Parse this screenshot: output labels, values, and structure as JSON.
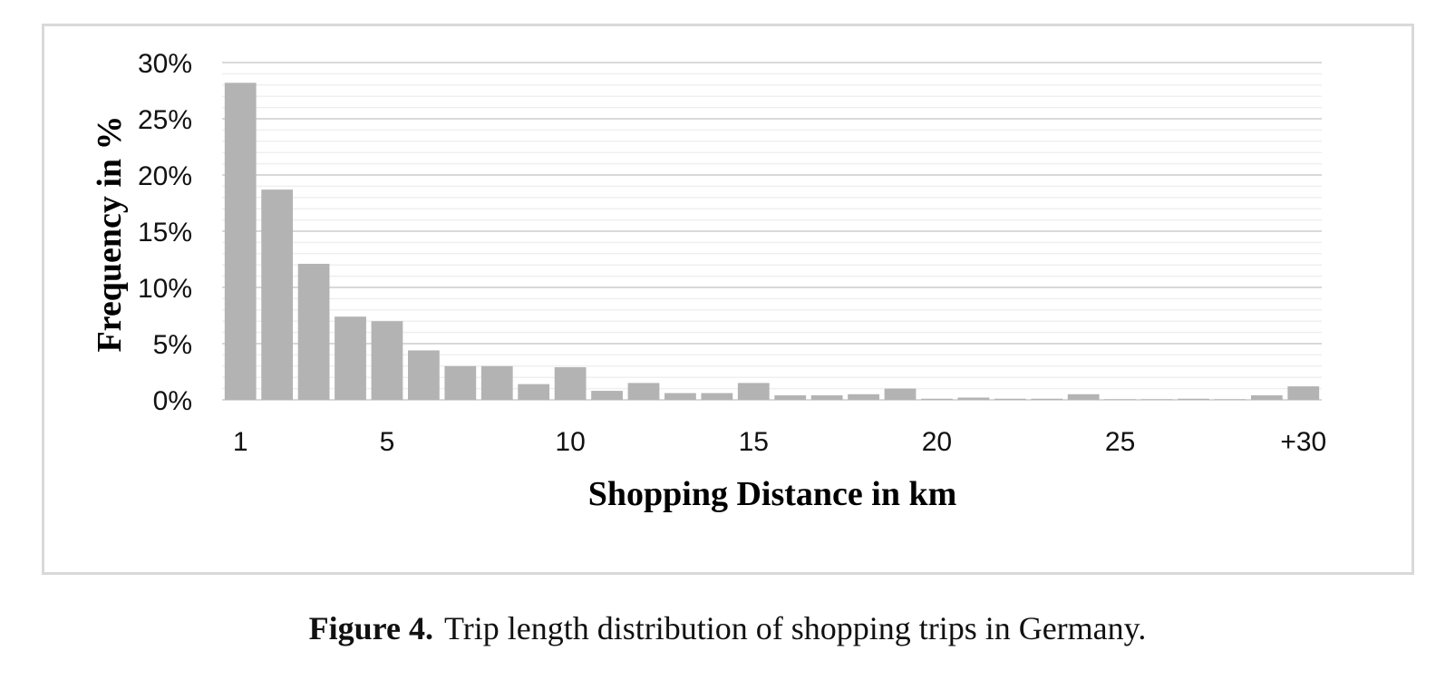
{
  "caption": {
    "label": "Figure 4.",
    "text": "Trip length distribution of shopping trips in Germany."
  },
  "chart_data": {
    "type": "bar",
    "xlabel": "Shopping Distance in km",
    "ylabel": "Frequency in %",
    "ylim": [
      0,
      30
    ],
    "y_ticks": [
      "0%",
      "5%",
      "10%",
      "15%",
      "20%",
      "25%",
      "30%"
    ],
    "x_tick_labels": [
      {
        "index": 0,
        "label": "1"
      },
      {
        "index": 4,
        "label": "5"
      },
      {
        "index": 9,
        "label": "10"
      },
      {
        "index": 14,
        "label": "15"
      },
      {
        "index": 19,
        "label": "20"
      },
      {
        "index": 24,
        "label": "25"
      },
      {
        "index": 29,
        "label": "+30"
      }
    ],
    "categories": [
      "1",
      "2",
      "3",
      "4",
      "5",
      "6",
      "7",
      "8",
      "9",
      "10",
      "11",
      "12",
      "13",
      "14",
      "15",
      "16",
      "17",
      "18",
      "19",
      "20",
      "21",
      "22",
      "23",
      "24",
      "25",
      "26",
      "27",
      "28",
      "29",
      "+30"
    ],
    "values": [
      28.2,
      18.7,
      12.1,
      7.4,
      7.0,
      4.4,
      3.0,
      3.0,
      1.4,
      2.9,
      0.8,
      1.5,
      0.6,
      0.6,
      1.5,
      0.4,
      0.4,
      0.5,
      1.0,
      0.1,
      0.2,
      0.1,
      0.1,
      0.5,
      0.05,
      0.05,
      0.1,
      0.05,
      0.4,
      1.2
    ],
    "bar_color": "#b3b3b3",
    "grid": true,
    "major_grid_color": "#d9d9d9",
    "minor_grid_color": "#efefef"
  }
}
